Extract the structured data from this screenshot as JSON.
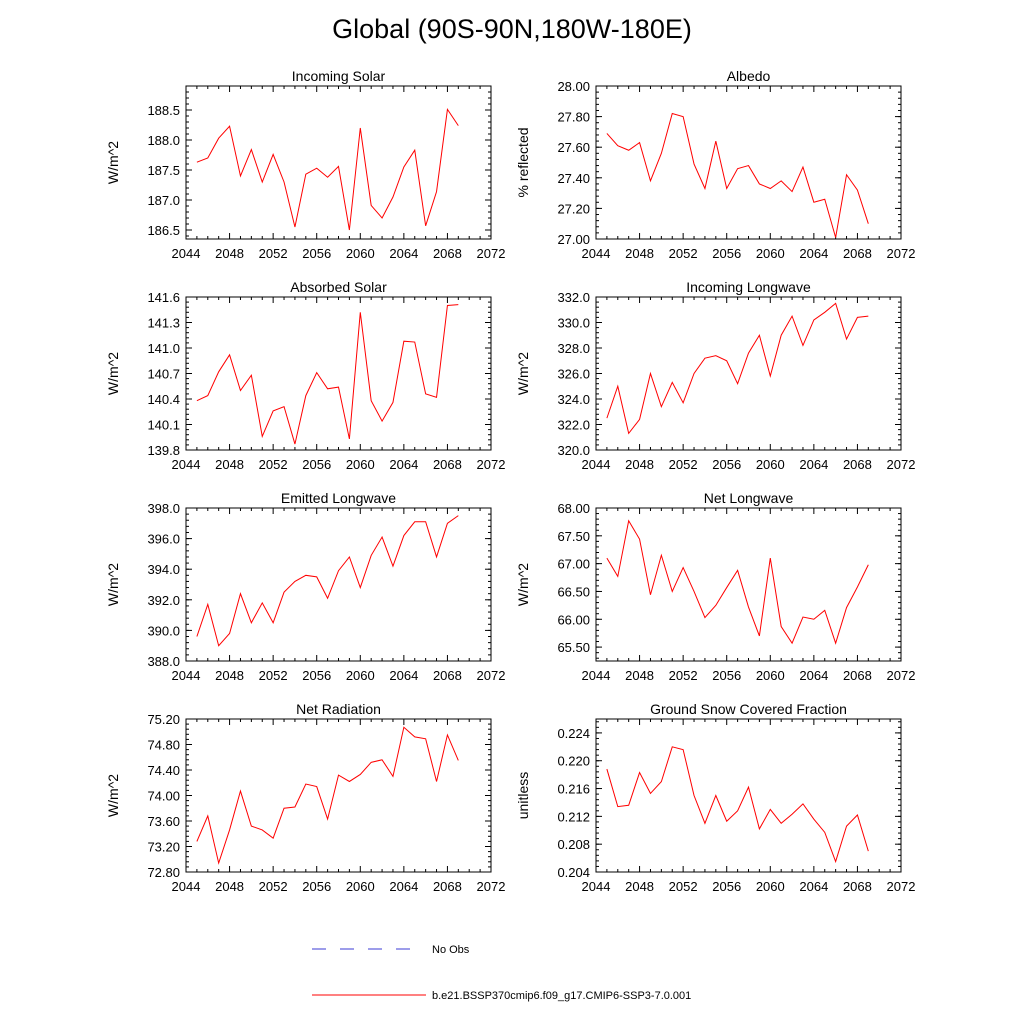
{
  "title": "Global (90S-90N,180W-180E)",
  "legend": {
    "obs_label": "No Obs",
    "model_label": "b.e21.BSSP370cmip6.f09_g17.CMIP6-SSP3-7.0.001",
    "obs_color": "#3b3bd6",
    "model_color": "#ff0000"
  },
  "chart_data": [
    {
      "type": "line",
      "title": "Incoming Solar",
      "ylabel": "W/m^2",
      "xlim": [
        2044,
        2072
      ],
      "ylim": [
        186.35,
        188.9
      ],
      "xticks": [
        "2044",
        "2048",
        "2052",
        "2056",
        "2060",
        "2064",
        "2068",
        "2072"
      ],
      "yticks": [
        "186.5",
        "187.0",
        "187.5",
        "188.0",
        "188.5"
      ],
      "grid": false,
      "x": [
        2045,
        2046,
        2047,
        2048,
        2049,
        2050,
        2051,
        2052,
        2053,
        2054,
        2055,
        2056,
        2057,
        2058,
        2059,
        2060,
        2061,
        2062,
        2063,
        2064,
        2065,
        2066,
        2067,
        2068,
        2069
      ],
      "series": [
        {
          "color": "#ff0000",
          "values": [
            187.63,
            187.7,
            188.03,
            188.23,
            187.4,
            187.84,
            187.3,
            187.76,
            187.3,
            186.55,
            187.43,
            187.53,
            187.38,
            187.56,
            186.5,
            188.2,
            186.91,
            186.7,
            187.05,
            187.55,
            187.83,
            186.57,
            187.14,
            188.51,
            188.24
          ]
        }
      ]
    },
    {
      "type": "line",
      "title": "Albedo",
      "ylabel": "% reflected",
      "xlim": [
        2044,
        2072
      ],
      "ylim": [
        27.0,
        28.0
      ],
      "xticks": [
        "2044",
        "2048",
        "2052",
        "2056",
        "2060",
        "2064",
        "2068",
        "2072"
      ],
      "yticks": [
        "27.00",
        "27.20",
        "27.40",
        "27.60",
        "27.80",
        "28.00"
      ],
      "grid": false,
      "x": [
        2045,
        2046,
        2047,
        2048,
        2049,
        2050,
        2051,
        2052,
        2053,
        2054,
        2055,
        2056,
        2057,
        2058,
        2059,
        2060,
        2061,
        2062,
        2063,
        2064,
        2065,
        2066,
        2067,
        2068,
        2069
      ],
      "series": [
        {
          "color": "#ff0000",
          "values": [
            27.69,
            27.61,
            27.58,
            27.63,
            27.38,
            27.56,
            27.82,
            27.8,
            27.49,
            27.33,
            27.64,
            27.33,
            27.46,
            27.48,
            27.36,
            27.33,
            27.38,
            27.31,
            27.47,
            27.24,
            27.26,
            27.01,
            27.42,
            27.32,
            27.1
          ]
        }
      ]
    },
    {
      "type": "line",
      "title": "Absorbed Solar",
      "ylabel": "W/m^2",
      "xlim": [
        2044,
        2072
      ],
      "ylim": [
        139.8,
        141.6
      ],
      "xticks": [
        "2044",
        "2048",
        "2052",
        "2056",
        "2060",
        "2064",
        "2068",
        "2072"
      ],
      "yticks": [
        "139.8",
        "140.1",
        "140.4",
        "140.7",
        "141.0",
        "141.3",
        "141.6"
      ],
      "grid": false,
      "x": [
        2045,
        2046,
        2047,
        2048,
        2049,
        2050,
        2051,
        2052,
        2053,
        2054,
        2055,
        2056,
        2057,
        2058,
        2059,
        2060,
        2061,
        2062,
        2063,
        2064,
        2065,
        2066,
        2067,
        2068,
        2069
      ],
      "series": [
        {
          "color": "#ff0000",
          "values": [
            140.38,
            140.44,
            140.72,
            140.92,
            140.5,
            140.68,
            139.96,
            140.26,
            140.31,
            139.87,
            140.44,
            140.71,
            140.52,
            140.54,
            139.93,
            141.42,
            140.38,
            140.14,
            140.36,
            141.08,
            141.07,
            140.46,
            140.42,
            141.5,
            141.51
          ]
        }
      ]
    },
    {
      "type": "line",
      "title": "Incoming Longwave",
      "ylabel": "W/m^2",
      "xlim": [
        2044,
        2072
      ],
      "ylim": [
        320.0,
        332.0
      ],
      "xticks": [
        "2044",
        "2048",
        "2052",
        "2056",
        "2060",
        "2064",
        "2068",
        "2072"
      ],
      "yticks": [
        "320.0",
        "322.0",
        "324.0",
        "326.0",
        "328.0",
        "330.0",
        "332.0"
      ],
      "grid": false,
      "x": [
        2045,
        2046,
        2047,
        2048,
        2049,
        2050,
        2051,
        2052,
        2053,
        2054,
        2055,
        2056,
        2057,
        2058,
        2059,
        2060,
        2061,
        2062,
        2063,
        2064,
        2065,
        2066,
        2067,
        2068,
        2069
      ],
      "series": [
        {
          "color": "#ff0000",
          "values": [
            322.5,
            325.0,
            321.3,
            322.4,
            326.0,
            323.4,
            325.3,
            323.7,
            326.0,
            327.2,
            327.4,
            327.0,
            325.2,
            327.6,
            329.0,
            325.8,
            329.0,
            330.5,
            328.2,
            330.2,
            330.8,
            331.5,
            328.7,
            330.4,
            330.5
          ]
        }
      ]
    },
    {
      "type": "line",
      "title": "Emitted Longwave",
      "ylabel": "W/m^2",
      "xlim": [
        2044,
        2072
      ],
      "ylim": [
        388.0,
        398.0
      ],
      "xticks": [
        "2044",
        "2048",
        "2052",
        "2056",
        "2060",
        "2064",
        "2068",
        "2072"
      ],
      "yticks": [
        "388.0",
        "390.0",
        "392.0",
        "394.0",
        "396.0",
        "398.0"
      ],
      "grid": false,
      "x": [
        2045,
        2046,
        2047,
        2048,
        2049,
        2050,
        2051,
        2052,
        2053,
        2054,
        2055,
        2056,
        2057,
        2058,
        2059,
        2060,
        2061,
        2062,
        2063,
        2064,
        2065,
        2066,
        2067,
        2068,
        2069
      ],
      "series": [
        {
          "color": "#ff0000",
          "values": [
            389.6,
            391.7,
            389.0,
            389.8,
            392.4,
            390.5,
            391.8,
            390.5,
            392.5,
            393.2,
            393.6,
            393.5,
            392.1,
            393.9,
            394.8,
            392.8,
            394.9,
            396.1,
            394.2,
            396.2,
            397.1,
            397.1,
            394.8,
            397.0,
            397.5
          ]
        }
      ]
    },
    {
      "type": "line",
      "title": "Net Longwave",
      "ylabel": "W/m^2",
      "xlim": [
        2044,
        2072
      ],
      "ylim": [
        65.25,
        68.0
      ],
      "xticks": [
        "2044",
        "2048",
        "2052",
        "2056",
        "2060",
        "2064",
        "2068",
        "2072"
      ],
      "yticks": [
        "65.50",
        "66.00",
        "66.50",
        "67.00",
        "67.50",
        "68.00"
      ],
      "grid": false,
      "x": [
        2045,
        2046,
        2047,
        2048,
        2049,
        2050,
        2051,
        2052,
        2053,
        2054,
        2055,
        2056,
        2057,
        2058,
        2059,
        2060,
        2061,
        2062,
        2063,
        2064,
        2065,
        2066,
        2067,
        2068,
        2069
      ],
      "series": [
        {
          "color": "#ff0000",
          "values": [
            67.1,
            66.77,
            67.77,
            67.44,
            66.44,
            67.15,
            66.5,
            66.93,
            66.5,
            66.03,
            66.25,
            66.57,
            66.88,
            66.22,
            65.7,
            67.1,
            65.87,
            65.57,
            66.04,
            66.0,
            66.16,
            65.57,
            66.21,
            66.58,
            66.98
          ]
        }
      ]
    },
    {
      "type": "line",
      "title": "Net Radiation",
      "ylabel": "W/m^2",
      "xlim": [
        2044,
        2072
      ],
      "ylim": [
        72.8,
        75.2
      ],
      "xticks": [
        "2044",
        "2048",
        "2052",
        "2056",
        "2060",
        "2064",
        "2068",
        "2072"
      ],
      "yticks": [
        "72.80",
        "73.20",
        "73.60",
        "74.00",
        "74.40",
        "74.80",
        "75.20"
      ],
      "grid": false,
      "x": [
        2045,
        2046,
        2047,
        2048,
        2049,
        2050,
        2051,
        2052,
        2053,
        2054,
        2055,
        2056,
        2057,
        2058,
        2059,
        2060,
        2061,
        2062,
        2063,
        2064,
        2065,
        2066,
        2067,
        2068,
        2069
      ],
      "series": [
        {
          "color": "#ff0000",
          "values": [
            73.28,
            73.68,
            72.94,
            73.46,
            74.07,
            73.52,
            73.46,
            73.33,
            73.8,
            73.82,
            74.18,
            74.14,
            73.63,
            74.32,
            74.22,
            74.33,
            74.52,
            74.56,
            74.3,
            75.07,
            74.92,
            74.89,
            74.22,
            74.95,
            74.55
          ]
        }
      ]
    },
    {
      "type": "line",
      "title": "Ground Snow Covered Fraction",
      "ylabel": "unitless",
      "xlim": [
        2044,
        2072
      ],
      "ylim": [
        0.204,
        0.226
      ],
      "xticks": [
        "2044",
        "2048",
        "2052",
        "2056",
        "2060",
        "2064",
        "2068",
        "2072"
      ],
      "yticks": [
        "0.204",
        "0.208",
        "0.212",
        "0.216",
        "0.220",
        "0.224"
      ],
      "grid": false,
      "x": [
        2045,
        2046,
        2047,
        2048,
        2049,
        2050,
        2051,
        2052,
        2053,
        2054,
        2055,
        2056,
        2057,
        2058,
        2059,
        2060,
        2061,
        2062,
        2063,
        2064,
        2065,
        2066,
        2067,
        2068,
        2069
      ],
      "series": [
        {
          "color": "#ff0000",
          "values": [
            0.2188,
            0.2134,
            0.2136,
            0.2183,
            0.2153,
            0.217,
            0.222,
            0.2216,
            0.215,
            0.211,
            0.215,
            0.2113,
            0.2128,
            0.2162,
            0.2102,
            0.213,
            0.211,
            0.2123,
            0.2138,
            0.2116,
            0.2097,
            0.2055,
            0.2106,
            0.2122,
            0.207
          ]
        }
      ]
    }
  ]
}
